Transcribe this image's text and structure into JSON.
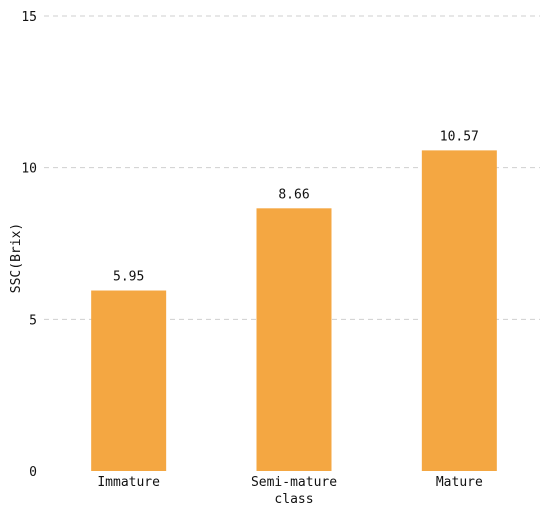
{
  "chart_data": {
    "type": "bar",
    "title": "",
    "xlabel": "class",
    "ylabel": "SSC(Brix)",
    "categories": [
      "Immature",
      "Semi-mature",
      "Mature"
    ],
    "values": [
      5.95,
      8.66,
      10.57
    ],
    "data_labels": [
      "5.95",
      "8.66",
      "10.57"
    ],
    "ylim": [
      0,
      15
    ],
    "yticks": [
      0,
      5,
      10,
      15
    ],
    "ytick_labels": [
      "0",
      "5",
      "10",
      "15"
    ],
    "grid": true,
    "bar_color": "#F4A742"
  }
}
